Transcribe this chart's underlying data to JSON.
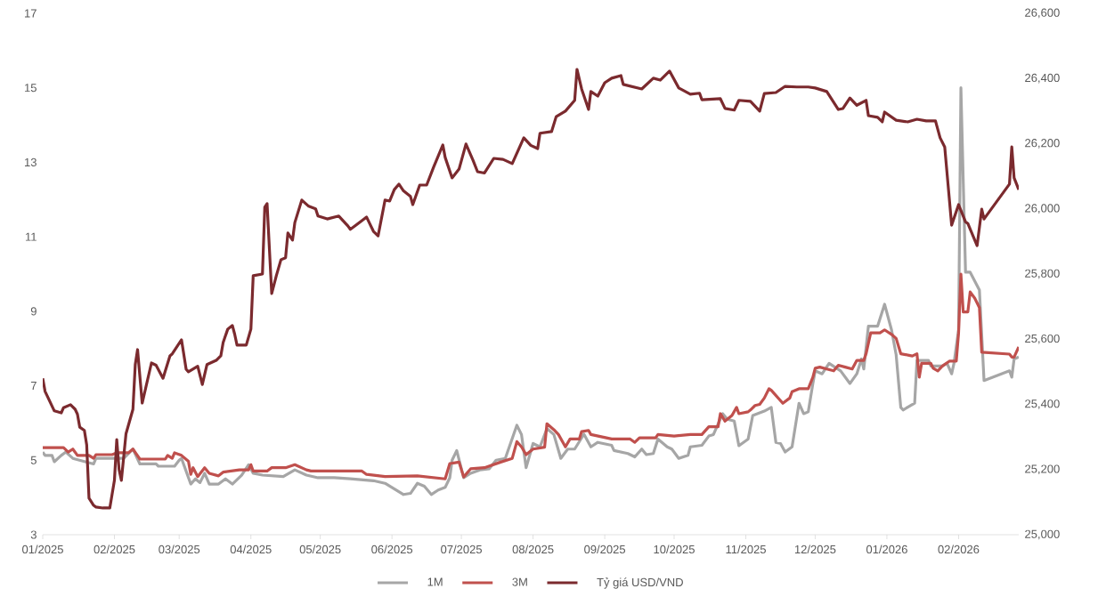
{
  "chart_data": {
    "type": "line",
    "legend": "bottom",
    "xlim": [
      "2025-01-01",
      "2026-02-27"
    ],
    "xticks": [
      {
        "value": "2025-01-01",
        "label": "01/2025"
      },
      {
        "value": "2025-02-01",
        "label": "02/2025"
      },
      {
        "value": "2025-03-01",
        "label": "03/2025"
      },
      {
        "value": "2025-04-01",
        "label": "04/2025"
      },
      {
        "value": "2025-05-01",
        "label": "05/2025"
      },
      {
        "value": "2025-06-01",
        "label": "06/2025"
      },
      {
        "value": "2025-07-01",
        "label": "07/2025"
      },
      {
        "value": "2025-08-01",
        "label": "08/2025"
      },
      {
        "value": "2025-09-01",
        "label": "09/2025"
      },
      {
        "value": "2025-10-01",
        "label": "10/2025"
      },
      {
        "value": "2025-11-01",
        "label": "11/2025"
      },
      {
        "value": "2025-12-01",
        "label": "12/2025"
      },
      {
        "value": "2026-01-01",
        "label": "01/2026"
      },
      {
        "value": "2026-02-01",
        "label": "02/2026"
      }
    ],
    "ylim": [
      3,
      17
    ],
    "yticks": [
      3,
      5,
      7,
      9,
      11,
      13,
      15,
      17
    ],
    "y2lim": [
      25000,
      26600
    ],
    "y2ticks": [
      {
        "value": 25000,
        "label": "25,000"
      },
      {
        "value": 25200,
        "label": "25,200"
      },
      {
        "value": 25400,
        "label": "25,400"
      },
      {
        "value": 25600,
        "label": "25,600"
      },
      {
        "value": 25800,
        "label": "25,800"
      },
      {
        "value": 26000,
        "label": "26,000"
      },
      {
        "value": 26200,
        "label": "26,200"
      },
      {
        "value": 26400,
        "label": "26,400"
      },
      {
        "value": 26600,
        "label": "26,600"
      }
    ],
    "series": [
      {
        "name": "1M",
        "color": "#a6a6a6",
        "x": [
          "2025-01-01",
          "2025-01-02",
          "2025-01-05",
          "2025-01-06",
          "2025-01-09",
          "2025-01-11",
          "2025-01-14",
          "2025-01-23",
          "2025-01-24",
          "2025-02-05",
          "2025-02-09",
          "2025-02-12",
          "2025-02-19",
          "2025-02-20",
          "2025-02-27",
          "2025-03-01",
          "2025-03-02",
          "2025-03-06",
          "2025-03-08",
          "2025-03-10",
          "2025-03-12",
          "2025-03-14",
          "2025-03-18",
          "2025-03-21",
          "2025-03-24",
          "2025-03-28",
          "2025-03-31",
          "2025-04-02",
          "2025-04-06",
          "2025-04-15",
          "2025-04-20",
          "2025-04-25",
          "2025-04-30",
          "2025-05-07",
          "2025-05-14",
          "2025-05-24",
          "2025-05-29",
          "2025-06-06",
          "2025-06-09",
          "2025-06-12",
          "2025-06-15",
          "2025-06-18",
          "2025-06-21",
          "2025-06-24",
          "2025-06-26",
          "2025-06-27",
          "2025-06-29",
          "2025-07-02",
          "2025-07-05",
          "2025-07-09",
          "2025-07-13",
          "2025-07-16",
          "2025-07-20",
          "2025-07-25",
          "2025-07-27",
          "2025-07-29",
          "2025-08-01",
          "2025-08-04",
          "2025-08-07",
          "2025-08-10",
          "2025-08-13",
          "2025-08-16",
          "2025-08-19",
          "2025-08-23",
          "2025-08-26",
          "2025-08-29",
          "2025-09-04",
          "2025-09-05",
          "2025-09-11",
          "2025-09-14",
          "2025-09-17",
          "2025-09-19",
          "2025-09-22",
          "2025-09-24",
          "2025-09-28",
          "2025-09-30",
          "2025-10-03",
          "2025-10-07",
          "2025-10-08",
          "2025-10-13",
          "2025-10-16",
          "2025-10-18",
          "2025-10-22",
          "2025-10-24",
          "2025-10-27",
          "2025-10-29",
          "2025-11-02",
          "2025-11-04",
          "2025-11-09",
          "2025-11-12",
          "2025-11-14",
          "2025-11-16",
          "2025-11-18",
          "2025-11-21",
          "2025-11-24",
          "2025-11-26",
          "2025-11-28",
          "2025-11-30",
          "2025-12-01",
          "2025-12-04",
          "2025-12-07",
          "2025-12-12",
          "2025-12-16",
          "2025-12-19",
          "2025-12-21",
          "2025-12-22",
          "2025-12-24",
          "2025-12-28",
          "2025-12-31",
          "2026-01-03",
          "2026-01-05",
          "2026-01-07",
          "2026-01-08",
          "2026-01-13",
          "2026-01-14",
          "2026-01-19",
          "2026-01-20",
          "2026-01-25",
          "2026-01-27",
          "2026-01-29",
          "2026-01-30",
          "2026-02-01",
          "2026-02-02",
          "2026-02-04",
          "2026-02-06",
          "2026-02-10",
          "2026-02-12",
          "2026-02-23",
          "2026-02-24",
          "2026-02-25",
          "2026-02-27"
        ],
        "values": [
          5.22,
          5.13,
          5.13,
          4.96,
          5.13,
          5.22,
          5.05,
          4.9,
          5.05,
          5.05,
          5.3,
          4.9,
          4.9,
          4.84,
          4.84,
          5.0,
          5.05,
          4.36,
          4.5,
          4.4,
          4.65,
          4.36,
          4.36,
          4.5,
          4.36,
          4.6,
          4.88,
          4.65,
          4.6,
          4.56,
          4.74,
          4.6,
          4.53,
          4.53,
          4.5,
          4.45,
          4.38,
          4.08,
          4.11,
          4.38,
          4.3,
          4.08,
          4.2,
          4.27,
          4.53,
          5.0,
          5.26,
          4.53,
          4.65,
          4.74,
          4.77,
          5.0,
          5.05,
          5.94,
          5.69,
          4.8,
          5.45,
          5.36,
          5.85,
          5.69,
          5.05,
          5.3,
          5.3,
          5.7,
          5.36,
          5.48,
          5.4,
          5.26,
          5.18,
          5.09,
          5.3,
          5.15,
          5.18,
          5.57,
          5.36,
          5.3,
          5.05,
          5.13,
          5.36,
          5.4,
          5.65,
          5.69,
          6.25,
          6.1,
          6.05,
          5.39,
          5.57,
          6.2,
          6.32,
          6.42,
          5.48,
          5.45,
          5.22,
          5.36,
          6.53,
          6.25,
          6.3,
          7.06,
          7.4,
          7.32,
          7.6,
          7.4,
          7.06,
          7.32,
          7.72,
          7.45,
          8.6,
          8.6,
          9.19,
          8.5,
          7.83,
          6.42,
          6.35,
          6.53,
          7.68,
          7.68,
          7.53,
          7.53,
          7.6,
          7.32,
          7.6,
          8.5,
          15.0,
          10.05,
          10.05,
          9.57,
          7.14,
          7.4,
          7.23,
          7.72,
          7.77
        ]
      },
      {
        "name": "3M",
        "color": "#c0504d",
        "x": [
          "2025-01-01",
          "2025-01-10",
          "2025-01-12",
          "2025-01-14",
          "2025-01-16",
          "2025-01-21",
          "2025-01-23",
          "2025-01-24",
          "2025-01-31",
          "2025-02-02",
          "2025-02-07",
          "2025-02-09",
          "2025-02-12",
          "2025-02-23",
          "2025-02-24",
          "2025-02-26",
          "2025-02-27",
          "2025-03-02",
          "2025-03-05",
          "2025-03-06",
          "2025-03-07",
          "2025-03-09",
          "2025-03-12",
          "2025-03-14",
          "2025-03-18",
          "2025-03-20",
          "2025-03-27",
          "2025-03-31",
          "2025-04-01",
          "2025-04-02",
          "2025-04-08",
          "2025-04-10",
          "2025-04-16",
          "2025-04-20",
          "2025-04-25",
          "2025-04-27",
          "2025-05-19",
          "2025-05-21",
          "2025-05-29",
          "2025-06-12",
          "2025-06-24",
          "2025-06-26",
          "2025-06-30",
          "2025-07-02",
          "2025-07-05",
          "2025-07-11",
          "2025-07-18",
          "2025-07-23",
          "2025-07-25",
          "2025-07-27",
          "2025-07-29",
          "2025-08-01",
          "2025-08-06",
          "2025-08-07",
          "2025-08-10",
          "2025-08-12",
          "2025-08-15",
          "2025-08-17",
          "2025-08-21",
          "2025-08-22",
          "2025-08-25",
          "2025-08-26",
          "2025-09-04",
          "2025-09-12",
          "2025-09-14",
          "2025-09-16",
          "2025-09-23",
          "2025-09-24",
          "2025-10-01",
          "2025-10-08",
          "2025-10-13",
          "2025-10-16",
          "2025-10-20",
          "2025-10-21",
          "2025-10-23",
          "2025-10-26",
          "2025-10-28",
          "2025-10-29",
          "2025-11-02",
          "2025-11-03",
          "2025-11-05",
          "2025-11-07",
          "2025-11-09",
          "2025-11-11",
          "2025-11-12",
          "2025-11-17",
          "2025-11-20",
          "2025-11-21",
          "2025-11-24",
          "2025-11-28",
          "2025-11-30",
          "2025-12-01",
          "2025-12-03",
          "2025-12-06",
          "2025-12-09",
          "2025-12-11",
          "2025-12-14",
          "2025-12-17",
          "2025-12-19",
          "2025-12-22",
          "2025-12-23",
          "2025-12-25",
          "2025-12-29",
          "2025-12-31",
          "2026-01-03",
          "2026-01-05",
          "2026-01-07",
          "2026-01-12",
          "2026-01-14",
          "2026-01-15",
          "2026-01-16",
          "2026-01-20",
          "2026-01-21",
          "2026-01-23",
          "2026-01-25",
          "2026-01-28",
          "2026-01-31",
          "2026-02-01",
          "2026-02-02",
          "2026-02-03",
          "2026-02-05",
          "2026-02-06",
          "2026-02-08",
          "2026-02-10",
          "2026-02-11",
          "2026-02-23",
          "2026-02-24",
          "2026-02-25",
          "2026-02-27"
        ],
        "values": [
          5.34,
          5.34,
          5.22,
          5.3,
          5.13,
          5.13,
          5.05,
          5.15,
          5.15,
          5.2,
          5.2,
          5.3,
          5.03,
          5.03,
          5.13,
          5.05,
          5.2,
          5.13,
          4.97,
          4.62,
          4.8,
          4.56,
          4.8,
          4.65,
          4.58,
          4.68,
          4.74,
          4.74,
          4.88,
          4.71,
          4.71,
          4.8,
          4.8,
          4.88,
          4.74,
          4.71,
          4.71,
          4.62,
          4.56,
          4.58,
          4.5,
          4.91,
          4.95,
          4.55,
          4.77,
          4.8,
          4.95,
          5.05,
          5.5,
          5.36,
          5.15,
          5.3,
          5.35,
          5.98,
          5.82,
          5.69,
          5.36,
          5.57,
          5.57,
          5.77,
          5.8,
          5.69,
          5.57,
          5.57,
          5.48,
          5.6,
          5.6,
          5.69,
          5.65,
          5.69,
          5.69,
          5.9,
          5.9,
          6.25,
          6.05,
          6.2,
          6.42,
          6.25,
          6.3,
          6.35,
          6.47,
          6.5,
          6.67,
          6.92,
          6.88,
          6.53,
          6.67,
          6.84,
          6.92,
          6.92,
          7.23,
          7.47,
          7.5,
          7.45,
          7.4,
          7.55,
          7.5,
          7.45,
          7.68,
          7.68,
          7.86,
          8.42,
          8.42,
          8.5,
          8.38,
          8.27,
          7.86,
          7.8,
          7.86,
          7.23,
          7.6,
          7.6,
          7.47,
          7.4,
          7.53,
          7.66,
          7.66,
          8.42,
          10.0,
          8.98,
          8.98,
          9.52,
          9.35,
          9.1,
          7.9,
          7.85,
          7.77,
          7.77,
          8.04
        ]
      },
      {
        "name": "Tỷ giá USD/VND",
        "color": "#7b2a2e",
        "axis": "y2",
        "x": [
          "2025-01-01",
          "2025-01-02",
          "2025-01-06",
          "2025-01-09",
          "2025-01-10",
          "2025-01-13",
          "2025-01-15",
          "2025-01-16",
          "2025-01-17",
          "2025-01-19",
          "2025-01-20",
          "2025-01-21",
          "2025-01-23",
          "2025-01-24",
          "2025-01-27",
          "2025-01-30",
          "2025-02-01",
          "2025-02-02",
          "2025-02-03",
          "2025-02-04",
          "2025-02-06",
          "2025-02-09",
          "2025-02-10",
          "2025-02-11",
          "2025-02-13",
          "2025-02-17",
          "2025-02-19",
          "2025-02-22",
          "2025-02-25",
          "2025-02-26",
          "2025-03-02",
          "2025-03-04",
          "2025-03-05",
          "2025-03-09",
          "2025-03-11",
          "2025-03-13",
          "2025-03-17",
          "2025-03-19",
          "2025-03-20",
          "2025-03-22",
          "2025-03-24",
          "2025-03-25",
          "2025-03-26",
          "2025-03-30",
          "2025-04-01",
          "2025-04-02",
          "2025-04-06",
          "2025-04-07",
          "2025-04-08",
          "2025-04-10",
          "2025-04-12",
          "2025-04-14",
          "2025-04-16",
          "2025-04-17",
          "2025-04-19",
          "2025-04-20",
          "2025-04-23",
          "2025-04-26",
          "2025-04-29",
          "2025-04-30",
          "2025-05-04",
          "2025-05-09",
          "2025-05-13",
          "2025-05-14",
          "2025-05-19",
          "2025-05-21",
          "2025-05-24",
          "2025-05-26",
          "2025-05-29",
          "2025-05-31",
          "2025-06-02",
          "2025-06-04",
          "2025-06-06",
          "2025-06-09",
          "2025-06-10",
          "2025-06-13",
          "2025-06-16",
          "2025-06-19",
          "2025-06-23",
          "2025-06-24",
          "2025-06-27",
          "2025-06-30",
          "2025-07-03",
          "2025-07-06",
          "2025-07-08",
          "2025-07-11",
          "2025-07-15",
          "2025-07-19",
          "2025-07-23",
          "2025-07-28",
          "2025-07-31",
          "2025-08-03",
          "2025-08-04",
          "2025-08-09",
          "2025-08-11",
          "2025-08-15",
          "2025-08-19",
          "2025-08-20",
          "2025-08-22",
          "2025-08-25",
          "2025-08-26",
          "2025-08-29",
          "2025-09-01",
          "2025-09-04",
          "2025-09-08",
          "2025-09-09",
          "2025-09-17",
          "2025-09-22",
          "2025-09-25",
          "2025-09-29",
          "2025-10-03",
          "2025-10-08",
          "2025-10-12",
          "2025-10-13",
          "2025-10-21",
          "2025-10-23",
          "2025-10-27",
          "2025-10-29",
          "2025-11-03",
          "2025-11-07",
          "2025-11-09",
          "2025-11-14",
          "2025-11-18",
          "2025-11-23",
          "2025-11-28",
          "2025-12-01",
          "2025-12-06",
          "2025-12-11",
          "2025-12-13",
          "2025-12-16",
          "2025-12-19",
          "2025-12-23",
          "2025-12-24",
          "2025-12-28",
          "2025-12-30",
          "2025-12-31",
          "2026-01-05",
          "2026-01-10",
          "2026-01-14",
          "2026-01-18",
          "2026-01-22",
          "2026-01-24",
          "2026-01-26",
          "2026-01-29",
          "2026-02-01",
          "2026-02-04",
          "2026-02-05",
          "2026-02-09",
          "2026-02-11",
          "2026-02-12",
          "2026-02-23",
          "2026-02-24",
          "2026-02-25",
          "2026-02-27"
        ],
        "values": [
          25480,
          25440,
          25380,
          25374,
          25390,
          25399,
          25385,
          25370,
          25330,
          25320,
          25276,
          25112,
          25090,
          25085,
          25082,
          25082,
          25167,
          25292,
          25200,
          25167,
          25310,
          25385,
          25522,
          25568,
          25404,
          25527,
          25520,
          25480,
          25549,
          25555,
          25598,
          25508,
          25500,
          25517,
          25461,
          25522,
          25535,
          25549,
          25590,
          25631,
          25642,
          25615,
          25582,
          25582,
          25631,
          25795,
          25800,
          26005,
          26016,
          25740,
          25795,
          25844,
          25850,
          25926,
          25904,
          25958,
          26027,
          26008,
          26000,
          25978,
          25969,
          25978,
          25947,
          25937,
          25964,
          25975,
          25931,
          25917,
          26027,
          26024,
          26059,
          26076,
          26055,
          26038,
          26013,
          26073,
          26073,
          26128,
          26196,
          26158,
          26095,
          26122,
          26199,
          26150,
          26114,
          26110,
          26155,
          26152,
          26139,
          26218,
          26195,
          26185,
          26232,
          26237,
          26283,
          26300,
          26333,
          26428,
          26368,
          26305,
          26360,
          26346,
          26387,
          26401,
          26409,
          26382,
          26368,
          26401,
          26395,
          26423,
          26371,
          26352,
          26355,
          26335,
          26338,
          26308,
          26303,
          26333,
          26330,
          26300,
          26354,
          26357,
          26376,
          26374,
          26374,
          26371,
          26360,
          26305,
          26308,
          26340,
          26318,
          26333,
          26286,
          26281,
          26267,
          26297,
          26272,
          26267,
          26275,
          26270,
          26270,
          26218,
          26190,
          25950,
          26013,
          25960,
          25955,
          25887,
          25999,
          25969,
          26076,
          26190,
          26095,
          26059
        ]
      }
    ]
  }
}
